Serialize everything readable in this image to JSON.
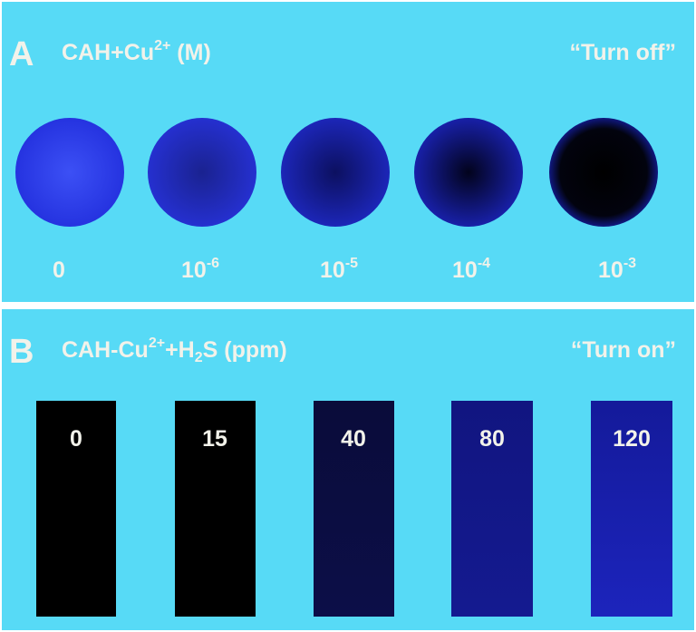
{
  "panel_a": {
    "label": "A",
    "title": {
      "main": "CAH+Cu",
      "sup": "2+",
      "rest": " (M)"
    },
    "note": "“Turn off”",
    "samples": [
      {
        "base": "0"
      },
      {
        "base": "10",
        "exp": "-6"
      },
      {
        "base": "10",
        "exp": "-5"
      },
      {
        "base": "10",
        "exp": "-4"
      },
      {
        "base": "10",
        "exp": "-3"
      }
    ]
  },
  "panel_b": {
    "label": "B",
    "title": {
      "main": "CAH-Cu",
      "sup": "2+",
      "mid": "+H",
      "sub": "2",
      "rest": "S (ppm)"
    },
    "note": "“Turn on”",
    "samples": [
      "0",
      "15",
      "40",
      "80",
      "120"
    ]
  }
}
